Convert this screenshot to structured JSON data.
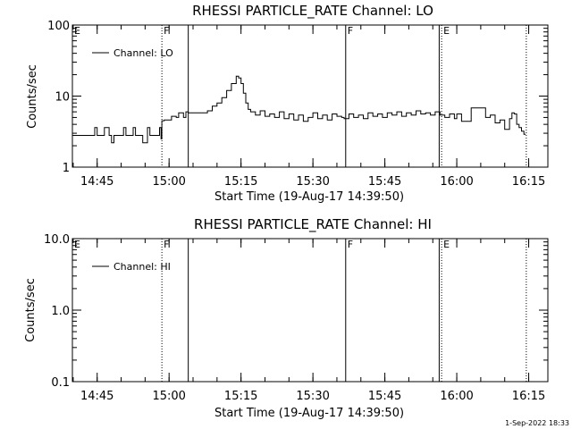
{
  "chart_data": [
    {
      "type": "line",
      "title": "RHESSI PARTICLE_RATE Channel: LO",
      "xlabel": "Start Time (19-Aug-17 14:39:50)",
      "ylabel": "Counts/sec",
      "yscale": "log",
      "ylim": [
        1,
        100
      ],
      "xlim": [
        "14:39:50",
        "16:19:00"
      ],
      "y_tick_labels": [
        "1",
        "10",
        "100"
      ],
      "x_tick_labels": [
        "14:45",
        "15:00",
        "15:15",
        "15:30",
        "15:45",
        "16:00",
        "16:15"
      ],
      "legend": {
        "label": "Channel: LO",
        "position": "top-left"
      },
      "grid": false,
      "markers": [
        {
          "time": "14:39:50",
          "label": "E",
          "style": "none"
        },
        {
          "time": "14:58:30",
          "label": "F",
          "style": "dotted"
        },
        {
          "time": "15:04:00",
          "label": "",
          "style": "solid"
        },
        {
          "time": "15:36:50",
          "label": "F",
          "style": "solid"
        },
        {
          "time": "15:56:20",
          "label": "",
          "style": "solid"
        },
        {
          "time": "15:56:50",
          "label": "E",
          "style": "dotted"
        },
        {
          "time": "16:14:30",
          "label": "",
          "style": "dotted"
        }
      ],
      "series": [
        {
          "name": "Channel: LO",
          "x": [
            "14:39:50",
            "14:44:00",
            "14:44:30",
            "14:45:00",
            "14:46:00",
            "14:46:30",
            "14:47:30",
            "14:48:00",
            "14:48:30",
            "14:50:00",
            "14:50:30",
            "14:51:00",
            "14:52:00",
            "14:52:30",
            "14:53:00",
            "14:54:00",
            "14:54:30",
            "14:55:30",
            "14:56:00",
            "14:57:00",
            "14:58:00",
            "14:58:20",
            "14:58:30",
            "14:59:00",
            "15:00:00",
            "15:00:30",
            "15:01:30",
            "15:02:00",
            "15:03:00",
            "15:03:30",
            "15:04:00",
            "15:05:00",
            "15:06:00",
            "15:07:00",
            "15:08:00",
            "15:09:00",
            "15:10:00",
            "15:11:00",
            "15:12:00",
            "15:13:00",
            "15:14:00",
            "15:14:30",
            "15:15:00",
            "15:15:30",
            "15:16:00",
            "15:16:30",
            "15:17:00",
            "15:18:00",
            "15:19:00",
            "15:20:00",
            "15:21:00",
            "15:22:00",
            "15:23:00",
            "15:24:00",
            "15:25:00",
            "15:26:00",
            "15:27:00",
            "15:28:00",
            "15:29:00",
            "15:30:00",
            "15:31:00",
            "15:32:00",
            "15:33:00",
            "15:34:00",
            "15:35:00",
            "15:36:00",
            "15:36:30",
            "15:37:30",
            "15:38:30",
            "15:39:30",
            "15:40:30",
            "15:41:30",
            "15:42:30",
            "15:43:30",
            "15:44:30",
            "15:45:30",
            "15:46:30",
            "15:47:30",
            "15:48:30",
            "15:49:30",
            "15:50:30",
            "15:51:30",
            "15:52:30",
            "15:53:30",
            "15:54:30",
            "15:55:30",
            "15:56:30",
            "15:57:30",
            "15:58:30",
            "15:59:30",
            "16:00:00",
            "16:01:00",
            "16:02:00",
            "16:03:00",
            "16:04:00",
            "16:05:00",
            "16:06:00",
            "16:07:00",
            "16:08:00",
            "16:09:00",
            "16:10:00",
            "16:11:00",
            "16:11:30",
            "16:12:00",
            "16:12:30",
            "16:13:00",
            "16:13:30",
            "16:14:00"
          ],
          "values": [
            2.8,
            2.8,
            3.6,
            2.8,
            2.8,
            3.6,
            2.8,
            2.2,
            2.8,
            2.8,
            3.6,
            2.8,
            2.8,
            3.6,
            2.8,
            2.8,
            2.2,
            3.6,
            2.8,
            2.8,
            3.6,
            2.5,
            4.5,
            4.6,
            4.6,
            5.2,
            5.0,
            5.8,
            5.0,
            6.0,
            5.8,
            5.8,
            5.8,
            5.8,
            6.2,
            7.2,
            8.0,
            9.5,
            12.0,
            15.0,
            19.0,
            18.0,
            15.0,
            11.0,
            8.0,
            6.5,
            6.0,
            5.4,
            6.2,
            5.2,
            5.6,
            5.0,
            6.0,
            4.8,
            5.6,
            4.6,
            5.4,
            4.4,
            5.0,
            5.8,
            4.8,
            5.4,
            4.6,
            5.6,
            5.2,
            5.0,
            4.8,
            5.6,
            5.0,
            5.4,
            4.8,
            5.8,
            5.2,
            5.6,
            5.0,
            5.8,
            5.4,
            6.0,
            5.2,
            5.8,
            5.4,
            6.2,
            5.6,
            5.8,
            5.4,
            6.0,
            5.4,
            5.0,
            5.6,
            4.8,
            5.6,
            4.4,
            4.4,
            6.8,
            6.8,
            6.8,
            5.0,
            5.4,
            4.2,
            4.6,
            3.4,
            4.8,
            5.8,
            5.6,
            4.0,
            3.6,
            3.2,
            2.9
          ]
        }
      ]
    },
    {
      "type": "line",
      "title": "RHESSI PARTICLE_RATE Channel: HI",
      "xlabel": "Start Time (19-Aug-17 14:39:50)",
      "ylabel": "Counts/sec",
      "yscale": "log",
      "ylim": [
        0.1,
        10.0
      ],
      "xlim": [
        "14:39:50",
        "16:19:00"
      ],
      "y_tick_labels": [
        "0.1",
        "1.0",
        "10.0"
      ],
      "x_tick_labels": [
        "14:45",
        "15:00",
        "15:15",
        "15:30",
        "15:45",
        "16:00",
        "16:15"
      ],
      "legend": {
        "label": "Channel: HI",
        "position": "top-left"
      },
      "grid": false,
      "markers": [
        {
          "time": "14:39:50",
          "label": "E",
          "style": "none"
        },
        {
          "time": "14:58:30",
          "label": "F",
          "style": "dotted"
        },
        {
          "time": "15:04:00",
          "label": "",
          "style": "solid"
        },
        {
          "time": "15:36:50",
          "label": "F",
          "style": "solid"
        },
        {
          "time": "15:56:20",
          "label": "",
          "style": "solid"
        },
        {
          "time": "15:56:50",
          "label": "E",
          "style": "dotted"
        },
        {
          "time": "16:14:30",
          "label": "",
          "style": "dotted"
        }
      ],
      "series": [
        {
          "name": "Channel: HI",
          "x": [],
          "values": []
        }
      ]
    }
  ],
  "footer": {
    "timestamp": "1-Sep-2022 18:33"
  }
}
